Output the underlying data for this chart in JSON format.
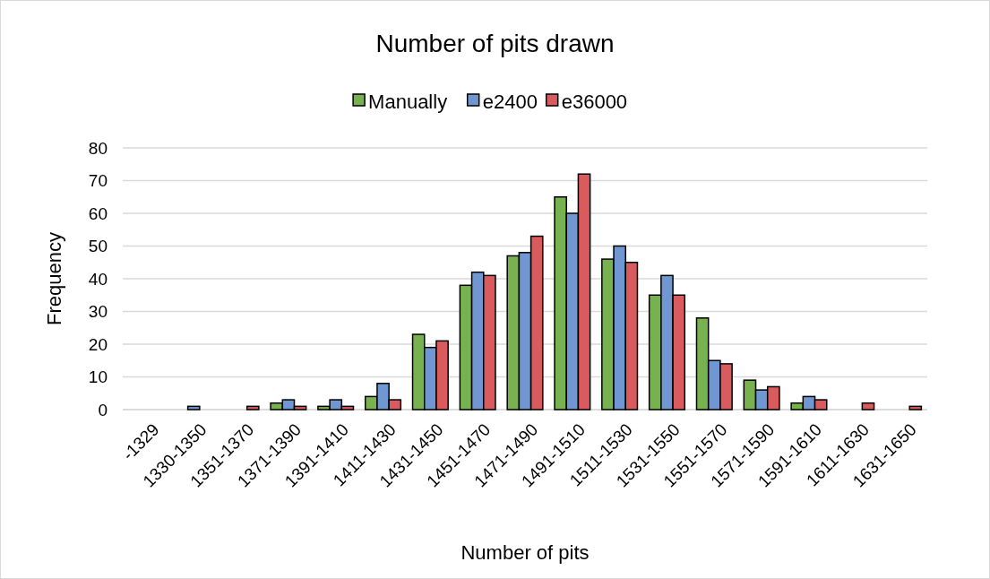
{
  "chart_data": {
    "type": "bar",
    "title": "Number of pits drawn",
    "xlabel": "Number of pits",
    "ylabel": "Frequency",
    "categories": [
      "-1329",
      "1330-1350",
      "1351-1370",
      "1371-1390",
      "1391-1410",
      "1411-1430",
      "1431-1450",
      "1451-1470",
      "1471-1490",
      "1491-1510",
      "1511-1530",
      "1531-1550",
      "1551-1570",
      "1571-1590",
      "1591-1610",
      "1611-1630",
      "1631-1650"
    ],
    "series": [
      {
        "name": "Manually",
        "color": "#77b150",
        "values": [
          0,
          0,
          0,
          2,
          1,
          4,
          23,
          38,
          47,
          65,
          46,
          35,
          28,
          9,
          2,
          0,
          0
        ]
      },
      {
        "name": "e2400",
        "color": "#7097d1",
        "values": [
          0,
          1,
          0,
          3,
          3,
          8,
          19,
          42,
          48,
          60,
          50,
          41,
          15,
          6,
          4,
          0,
          0
        ]
      },
      {
        "name": "e36000",
        "color": "#d95b5e",
        "values": [
          0,
          0,
          1,
          1,
          1,
          3,
          21,
          41,
          53,
          72,
          45,
          35,
          14,
          7,
          3,
          2,
          1
        ]
      }
    ],
    "ylim": [
      0,
      80
    ],
    "yticks": [
      0,
      10,
      20,
      30,
      40,
      50,
      60,
      70,
      80
    ],
    "grid": "y",
    "legend": "top"
  }
}
